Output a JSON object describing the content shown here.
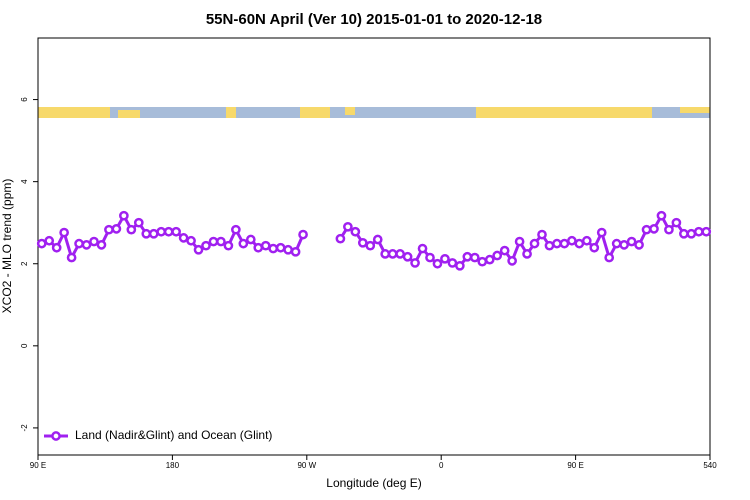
{
  "chart_data": {
    "type": "line",
    "title": "55N-60N April (Ver 10)   2015-01-01 to 2020-12-18",
    "xlabel": "Longitude (deg E)",
    "ylabel": "XCO2 - MLO trend (ppm)",
    "x": [
      92.5,
      97.5,
      102.5,
      107.5,
      112.5,
      117.5,
      122.5,
      127.5,
      132.5,
      137.5,
      142.5,
      147.5,
      152.5,
      157.5,
      162.5,
      167.5,
      172.5,
      177.5,
      182.5,
      187.5,
      192.5,
      197.5,
      202.5,
      207.5,
      212.5,
      217.5,
      222.5,
      227.5,
      232.5,
      237.5,
      242.5,
      247.5,
      252.5,
      257.5,
      262.5,
      267.5,
      272.5,
      277.5,
      282.5,
      287.5,
      292.5,
      297.5,
      302.5,
      307.5,
      312.5,
      317.5,
      322.5,
      327.5,
      332.5,
      337.5,
      342.5,
      347.5,
      352.5,
      357.5,
      362.5,
      367.5,
      372.5,
      377.5,
      382.5,
      387.5,
      392.5,
      397.5,
      402.5,
      407.5,
      412.5,
      417.5,
      422.5,
      427.5,
      432.5,
      437.5,
      442.5,
      447.5,
      452.5,
      457.5,
      462.5,
      467.5,
      472.5,
      477.5,
      482.5,
      487.5,
      492.5,
      497.5,
      502.5,
      507.5,
      512.5,
      517.5,
      522.5,
      527.5,
      532.5,
      537.5
    ],
    "series": [
      {
        "name": "Land (Nadir&Glint) and Ocean (Glint)",
        "color": "#a020f0",
        "values": [
          2.49,
          2.56,
          2.39,
          2.76,
          2.15,
          2.49,
          2.46,
          2.54,
          2.46,
          2.83,
          2.85,
          3.17,
          2.83,
          3.0,
          2.73,
          2.73,
          2.78,
          2.78,
          2.78,
          2.63,
          2.56,
          2.34,
          2.44,
          2.54,
          2.54,
          2.44,
          2.83,
          2.49,
          2.59,
          2.39,
          2.44,
          2.37,
          2.39,
          2.34,
          2.29,
          2.71,
          null,
          null,
          null,
          null,
          2.61,
          2.9,
          2.78,
          2.51,
          2.44,
          2.59,
          2.24,
          2.24,
          2.24,
          2.17,
          2.02,
          2.37,
          2.15,
          2.0,
          2.12,
          2.02,
          1.95,
          2.17,
          2.15,
          2.05,
          2.1,
          2.2,
          2.32,
          2.07,
          2.54,
          2.24,
          2.49,
          2.71,
          2.44,
          2.49,
          2.49,
          2.56,
          2.49,
          2.56,
          2.39,
          2.76,
          2.15,
          2.49,
          2.46,
          2.54,
          2.46,
          2.83,
          2.85,
          3.17,
          2.83,
          3.0,
          2.73,
          2.73,
          2.78,
          2.78
        ]
      }
    ],
    "xlim": [
      90,
      540
    ],
    "ylim": [
      -2.66,
      7.5
    ],
    "xticks": [
      {
        "value": 90,
        "label": "90 E"
      },
      180,
      {
        "value": 270,
        "label": "90 W"
      },
      {
        "value": 360,
        "label": "0"
      },
      {
        "value": 450,
        "label": "90 E"
      },
      540
    ],
    "yticks": [
      -2,
      0,
      2,
      4,
      6
    ],
    "legend": "bottom-left"
  }
}
